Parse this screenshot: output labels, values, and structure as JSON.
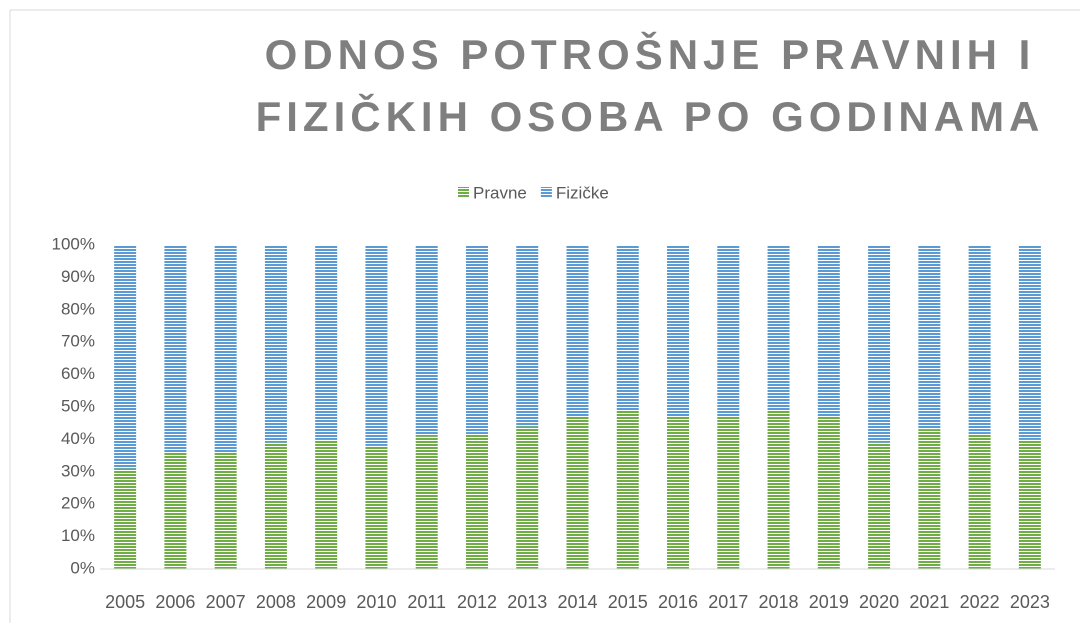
{
  "chart_data": {
    "type": "stacked_bar",
    "title": "ODNOS POTROŠNJE PRAVNIH I FIZIČKIH OSOBA PO GODINAMA",
    "categories": [
      "2005",
      "2006",
      "2007",
      "2008",
      "2009",
      "2010",
      "2011",
      "2012",
      "2013",
      "2014",
      "2015",
      "2016",
      "2017",
      "2018",
      "2019",
      "2020",
      "2021",
      "2022",
      "2023"
    ],
    "series": [
      {
        "name": "Pravne",
        "color": "#70ad47",
        "values": [
          31,
          36,
          36,
          39,
          40,
          38,
          41,
          42,
          44,
          47,
          49,
          47,
          47,
          49,
          47,
          39,
          43,
          42,
          40
        ]
      },
      {
        "name": "Fizičke",
        "color": "#5b9bd5",
        "values": [
          69,
          64,
          64,
          61,
          60,
          62,
          59,
          58,
          56,
          53,
          51,
          53,
          53,
          51,
          53,
          61,
          57,
          58,
          60
        ]
      }
    ],
    "ylim": [
      0,
      100
    ],
    "yticks": [
      {
        "value": 0,
        "label": "0%"
      },
      {
        "value": 10,
        "label": "10%"
      },
      {
        "value": 20,
        "label": "20%"
      },
      {
        "value": 30,
        "label": "30%"
      },
      {
        "value": 40,
        "label": "40%"
      },
      {
        "value": 50,
        "label": "50%"
      },
      {
        "value": 60,
        "label": "60%"
      },
      {
        "value": 70,
        "label": "70%"
      },
      {
        "value": 80,
        "label": "80%"
      },
      {
        "value": 90,
        "label": "90%"
      },
      {
        "value": 100,
        "label": "100%"
      }
    ],
    "legend": "top"
  }
}
